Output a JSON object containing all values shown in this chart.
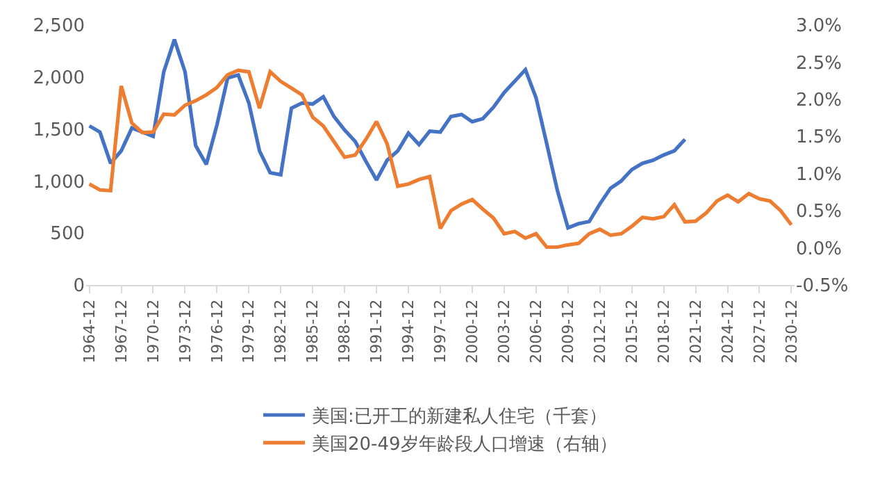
{
  "chart_data": {
    "type": "line",
    "categories": [
      "1964-12",
      null,
      null,
      "1967-12",
      null,
      null,
      "1970-12",
      null,
      null,
      "1973-12",
      null,
      null,
      "1976-12",
      null,
      null,
      "1979-12",
      null,
      null,
      "1982-12",
      null,
      null,
      "1985-12",
      null,
      null,
      "1988-12",
      null,
      null,
      "1991-12",
      null,
      null,
      "1994-12",
      null,
      null,
      "1997-12",
      null,
      null,
      "2000-12",
      null,
      null,
      "2003-12",
      null,
      null,
      "2006-12",
      null,
      null,
      "2009-12",
      null,
      null,
      "2012-12",
      null,
      null,
      "2015-12",
      null,
      null,
      "2018-12",
      null,
      null,
      "2021-12",
      null,
      null,
      "2024-12",
      null,
      null,
      "2027-12",
      null,
      null,
      "2030-12"
    ],
    "series": [
      {
        "name": "美国:已开工的新建私人住宅（千套）",
        "color": "#4472c4",
        "values": [
          1530,
          1470,
          1170,
          1290,
          1510,
          1470,
          1430,
          2050,
          2360,
          2050,
          1340,
          1160,
          1540,
          1990,
          2020,
          1750,
          1290,
          1080,
          1060,
          1700,
          1750,
          1740,
          1810,
          1620,
          1490,
          1380,
          1190,
          1010,
          1200,
          1290,
          1460,
          1350,
          1480,
          1470,
          1620,
          1640,
          1570,
          1600,
          1710,
          1850,
          1960,
          2070,
          1800,
          1360,
          910,
          550,
          590,
          610,
          780,
          930,
          1000,
          1110,
          1170,
          1200,
          1250,
          1290,
          1400,
          null,
          null,
          null,
          null,
          null,
          null,
          null,
          null,
          null,
          null
        ]
      },
      {
        "name": "美国20-49岁年龄段人口增速（右轴）",
        "color": "#ed7d31",
        "axis": "y2",
        "values": [
          0.86,
          0.78,
          0.77,
          2.18,
          1.68,
          1.55,
          1.56,
          1.8,
          1.79,
          1.92,
          1.98,
          2.06,
          2.16,
          2.33,
          2.39,
          2.37,
          1.88,
          2.37,
          2.24,
          2.15,
          2.06,
          1.76,
          1.64,
          1.43,
          1.22,
          1.25,
          1.46,
          1.7,
          1.4,
          0.83,
          0.86,
          0.92,
          0.96,
          0.26,
          0.5,
          0.59,
          0.65,
          0.52,
          0.4,
          0.19,
          0.22,
          0.13,
          0.19,
          0.01,
          0.01,
          0.04,
          0.06,
          0.19,
          0.25,
          0.17,
          0.19,
          0.29,
          0.41,
          0.39,
          0.42,
          0.58,
          0.35,
          0.36,
          0.47,
          0.63,
          0.71,
          0.62,
          0.73,
          0.66,
          0.63,
          0.5,
          0.31
        ]
      }
    ],
    "ylim": [
      0,
      2500
    ],
    "yticks": [
      0,
      500,
      {
        "value": 1000,
        "label": "1,000"
      },
      {
        "value": 1500,
        "label": "1,500"
      },
      {
        "value": 2000,
        "label": "2,000"
      },
      {
        "value": 2500,
        "label": "2,500"
      }
    ],
    "y2lim": [
      -0.5,
      3.0
    ],
    "y2ticks": [
      {
        "value": -0.5,
        "label": "-0.5%"
      },
      {
        "value": 0,
        "label": "0.0%"
      },
      {
        "value": 0.5,
        "label": "0.5%"
      },
      {
        "value": 1.0,
        "label": "1.0%"
      },
      {
        "value": 1.5,
        "label": "1.5%"
      },
      {
        "value": 2.0,
        "label": "2.0%"
      },
      {
        "value": 2.5,
        "label": "2.5%"
      },
      {
        "value": 3.0,
        "label": "3.0%"
      }
    ],
    "legend": "bottom",
    "marker": "none",
    "line_style": "solid"
  }
}
